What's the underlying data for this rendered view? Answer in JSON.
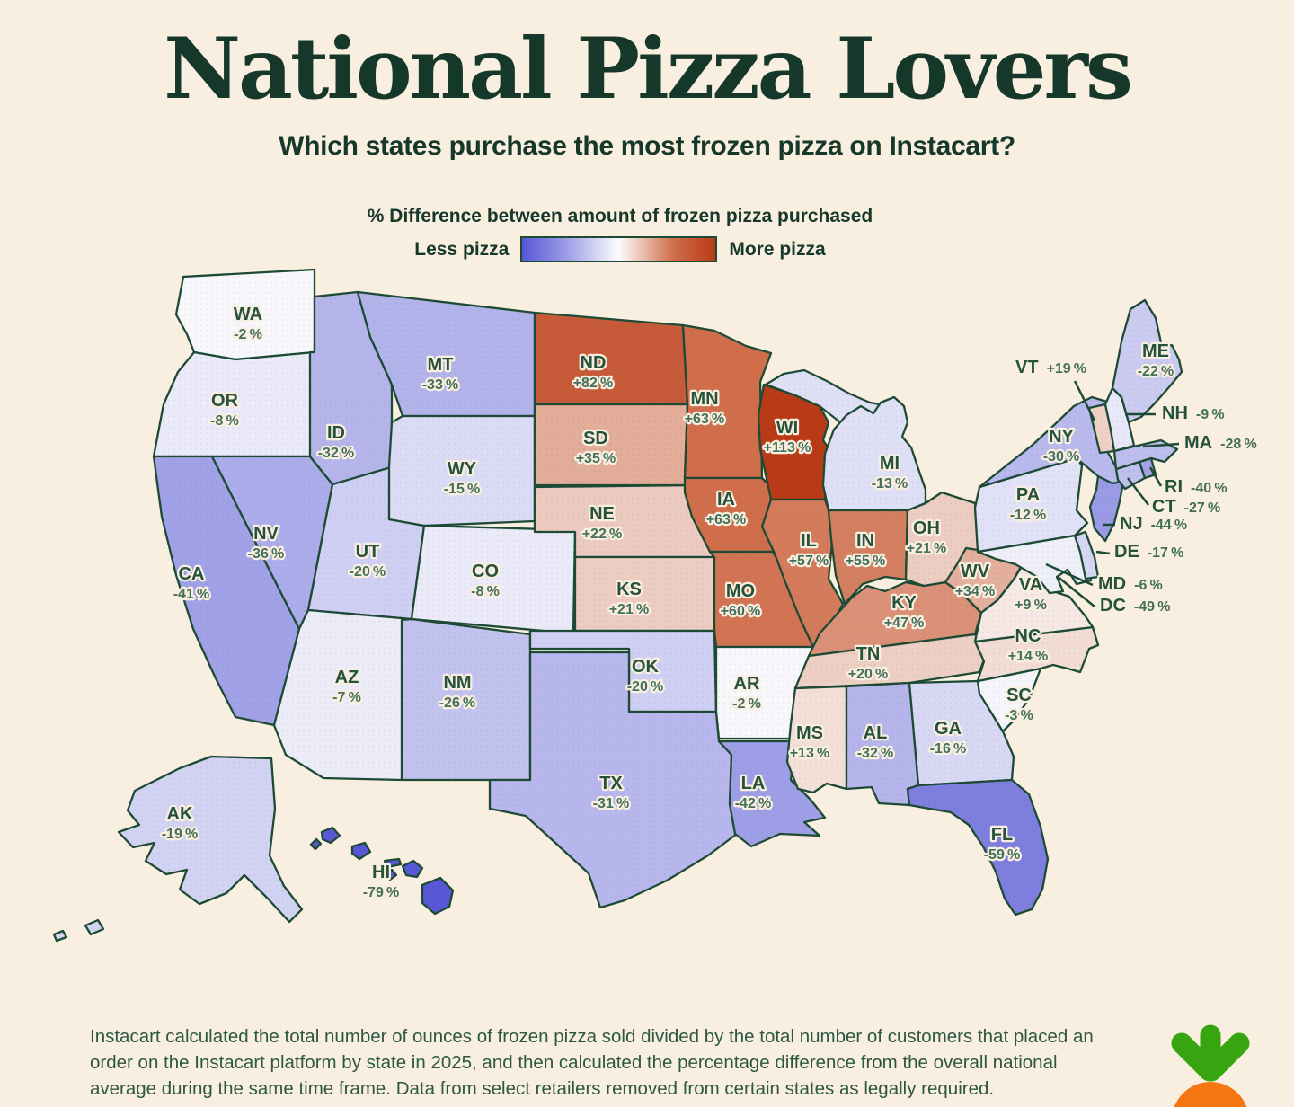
{
  "title": "National Pizza Lovers",
  "subtitle": "Which states purchase the most frozen pizza on Instacart?",
  "legend": {
    "title": "% Difference between amount of frozen pizza purchased",
    "less_label": "Less pizza",
    "more_label": "More pizza"
  },
  "footnote_lines": [
    "Instacart calculated the total number of ounces of frozen pizza sold divided by the total number of customers that placed an",
    "order on the Instacart platform by state in 2025, and then calculated the percentage difference from the overall national",
    "average during the same time frame. Data from select retailers removed from certain states as legally required."
  ],
  "logo_icon": "instacart-carrot",
  "colors": {
    "background": "#f9efe0",
    "ink": "#16382a",
    "outline": "#1d4a35",
    "label": "#26523c",
    "value_label": "#44705a",
    "scale_blue_end": "#5656d6",
    "scale_blue_mid": "#9a9ae6",
    "scale_neutral": "#fcfcfd",
    "scale_red_mid": "#d06f4d",
    "scale_red_end": "#b93a16",
    "logo_green": "#36a50f",
    "logo_orange": "#f77614"
  },
  "chart_data": {
    "type": "heatmap",
    "subtype": "us-state-choropleth",
    "title": "% Difference between amount of frozen pizza purchased",
    "value_unit": "%",
    "value_range": [
      -79,
      113
    ],
    "legend": {
      "low": "Less pizza",
      "high": "More pizza"
    },
    "states": [
      {
        "abbr": "WA",
        "value": -2
      },
      {
        "abbr": "OR",
        "value": -8
      },
      {
        "abbr": "CA",
        "value": -41
      },
      {
        "abbr": "AK",
        "value": -19
      },
      {
        "abbr": "HI",
        "value": -79
      },
      {
        "abbr": "NV",
        "value": -36
      },
      {
        "abbr": "ID",
        "value": -32
      },
      {
        "abbr": "UT",
        "value": -20
      },
      {
        "abbr": "AZ",
        "value": -7
      },
      {
        "abbr": "MT",
        "value": -33
      },
      {
        "abbr": "WY",
        "value": -15
      },
      {
        "abbr": "CO",
        "value": -8
      },
      {
        "abbr": "NM",
        "value": -26
      },
      {
        "abbr": "ND",
        "value": 82
      },
      {
        "abbr": "SD",
        "value": 35
      },
      {
        "abbr": "NE",
        "value": 22
      },
      {
        "abbr": "KS",
        "value": 21
      },
      {
        "abbr": "OK",
        "value": -20
      },
      {
        "abbr": "TX",
        "value": -31
      },
      {
        "abbr": "MN",
        "value": 63
      },
      {
        "abbr": "IA",
        "value": 63
      },
      {
        "abbr": "MO",
        "value": 60
      },
      {
        "abbr": "AR",
        "value": -2
      },
      {
        "abbr": "LA",
        "value": -42
      },
      {
        "abbr": "WI",
        "value": 113
      },
      {
        "abbr": "IL",
        "value": 57
      },
      {
        "abbr": "MS",
        "value": 13
      },
      {
        "abbr": "MI",
        "value": -13
      },
      {
        "abbr": "IN",
        "value": 55
      },
      {
        "abbr": "KY",
        "value": 47
      },
      {
        "abbr": "TN",
        "value": 20
      },
      {
        "abbr": "AL",
        "value": -32
      },
      {
        "abbr": "OH",
        "value": 21
      },
      {
        "abbr": "WV",
        "value": 34
      },
      {
        "abbr": "GA",
        "value": -16
      },
      {
        "abbr": "FL",
        "value": -59
      },
      {
        "abbr": "SC",
        "value": -3
      },
      {
        "abbr": "NC",
        "value": 14
      },
      {
        "abbr": "VA",
        "value": 9
      },
      {
        "abbr": "DC",
        "value": -49
      },
      {
        "abbr": "MD",
        "value": -6
      },
      {
        "abbr": "DE",
        "value": -17
      },
      {
        "abbr": "PA",
        "value": -12
      },
      {
        "abbr": "NJ",
        "value": -44
      },
      {
        "abbr": "NY",
        "value": -30
      },
      {
        "abbr": "CT",
        "value": -27
      },
      {
        "abbr": "RI",
        "value": -40
      },
      {
        "abbr": "MA",
        "value": -28
      },
      {
        "abbr": "VT",
        "value": 19
      },
      {
        "abbr": "NH",
        "value": -9
      },
      {
        "abbr": "ME",
        "value": -22
      }
    ]
  }
}
